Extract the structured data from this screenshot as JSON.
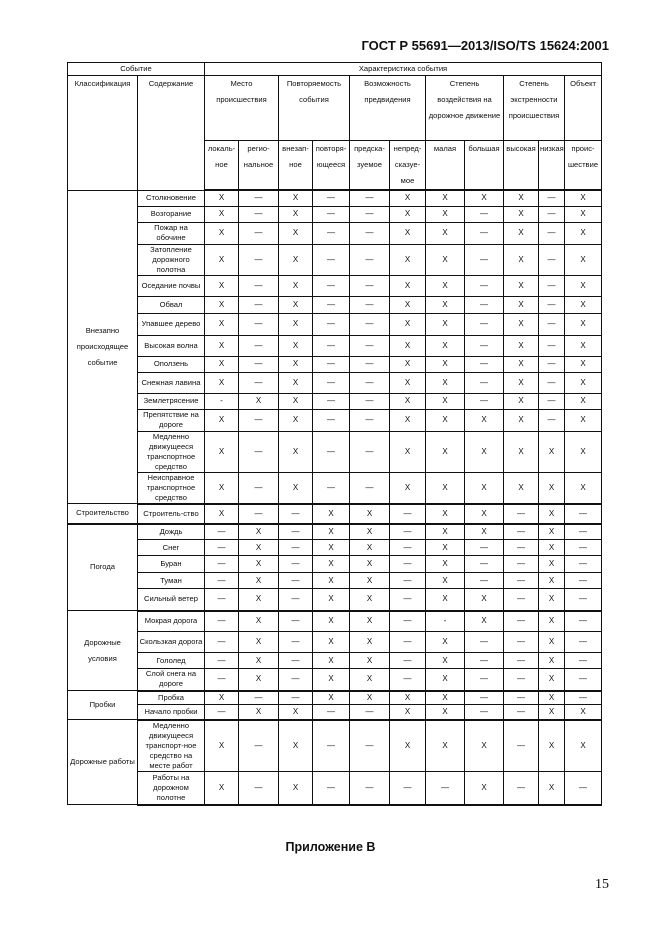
{
  "header": {
    "standard": "ГОСТ Р 55691—2013/ISO/TS 15624:2001"
  },
  "table": {
    "top_headers": {
      "event": "Событие",
      "characteristic": "Характеристика события"
    },
    "left_headers": {
      "classification": "Классификация",
      "content": "Содержание"
    },
    "groups": [
      {
        "label": "Место происшествия",
        "subs": [
          "локаль-ное",
          "регио-нальное"
        ]
      },
      {
        "label": "Повторяемость события",
        "subs": [
          "внезап-ное",
          "повторя-ющееся"
        ]
      },
      {
        "label": "Возможность предвидения",
        "subs": [
          "предска-зуемое",
          "непред-сказуе-мое"
        ]
      },
      {
        "label": "Степень воздействия на дорожное движение",
        "subs": [
          "малая",
          "большая"
        ]
      },
      {
        "label": "Степень экстренности происшествия",
        "subs": [
          "высокая",
          "низкая"
        ]
      },
      {
        "label": "Объект",
        "subs": [
          "проис-шествие"
        ]
      }
    ],
    "sections": [
      {
        "classification": "Внезапно происходящее событие",
        "rows": [
          {
            "content": "Столкновение",
            "values": [
              "X",
              "—",
              "X",
              "—",
              "—",
              "X",
              "X",
              "X",
              "X",
              "—",
              "X"
            ]
          },
          {
            "content": "Возгорание",
            "values": [
              "X",
              "—",
              "X",
              "—",
              "—",
              "X",
              "X",
              "—",
              "X",
              "—",
              "X"
            ]
          },
          {
            "content": "Пожар на обочине",
            "values": [
              "X",
              "—",
              "X",
              "—",
              "—",
              "X",
              "X",
              "—",
              "X",
              "—",
              "X"
            ]
          },
          {
            "content": "Затопление дорожного полотна",
            "values": [
              "X",
              "—",
              "X",
              "—",
              "—",
              "X",
              "X",
              "—",
              "X",
              "—",
              "X"
            ]
          },
          {
            "content": "Оседание почвы",
            "values": [
              "X",
              "—",
              "X",
              "—",
              "—",
              "X",
              "X",
              "—",
              "X",
              "—",
              "X"
            ]
          },
          {
            "content": "Обвал",
            "values": [
              "X",
              "—",
              "X",
              "—",
              "—",
              "X",
              "X",
              "—",
              "X",
              "—",
              "X"
            ]
          },
          {
            "content": "Упавшее дерево",
            "values": [
              "X",
              "—",
              "X",
              "—",
              "—",
              "X",
              "X",
              "—",
              "X",
              "—",
              "X"
            ]
          },
          {
            "content": "Высокая волна",
            "values": [
              "X",
              "—",
              "X",
              "—",
              "—",
              "X",
              "X",
              "—",
              "X",
              "—",
              "X"
            ]
          },
          {
            "content": "Оползень",
            "values": [
              "X",
              "—",
              "X",
              "—",
              "—",
              "X",
              "X",
              "—",
              "X",
              "—",
              "X"
            ]
          },
          {
            "content": "Снежная лавина",
            "values": [
              "X",
              "—",
              "X",
              "—",
              "—",
              "X",
              "X",
              "—",
              "X",
              "—",
              "X"
            ]
          },
          {
            "content": "Землетрясение",
            "values": [
              "-",
              "X",
              "X",
              "—",
              "—",
              "X",
              "X",
              "—",
              "X",
              "—",
              "X"
            ]
          },
          {
            "content": "Препятствие на дороге",
            "values": [
              "X",
              "—",
              "X",
              "—",
              "—",
              "X",
              "X",
              "X",
              "X",
              "—",
              "X"
            ]
          },
          {
            "content": "Медленно движущееся транспортное средство",
            "values": [
              "X",
              "—",
              "X",
              "—",
              "—",
              "X",
              "X",
              "X",
              "X",
              "X",
              "X"
            ]
          },
          {
            "content": "Неисправное транспортное средство",
            "values": [
              "X",
              "—",
              "X",
              "—",
              "—",
              "X",
              "X",
              "X",
              "X",
              "X",
              "X"
            ]
          }
        ]
      },
      {
        "classification": "Строительство",
        "rows": [
          {
            "content": "Строитель-ство",
            "values": [
              "X",
              "—",
              "—",
              "X",
              "X",
              "—",
              "X",
              "X",
              "—",
              "X",
              "—"
            ]
          }
        ]
      },
      {
        "classification": "Погода",
        "rows": [
          {
            "content": "Дождь",
            "values": [
              "—",
              "X",
              "—",
              "X",
              "X",
              "—",
              "X",
              "X",
              "—",
              "X",
              "—"
            ]
          },
          {
            "content": "Снег",
            "values": [
              "—",
              "X",
              "—",
              "X",
              "X",
              "—",
              "X",
              "—",
              "—",
              "X",
              "—"
            ]
          },
          {
            "content": "Буран",
            "values": [
              "—",
              "X",
              "—",
              "X",
              "X",
              "—",
              "X",
              "—",
              "—",
              "X",
              "—"
            ]
          },
          {
            "content": "Туман",
            "values": [
              "—",
              "X",
              "—",
              "X",
              "X",
              "—",
              "X",
              "—",
              "—",
              "X",
              "—"
            ]
          },
          {
            "content": "Сильный ветер",
            "values": [
              "—",
              "X",
              "—",
              "X",
              "X",
              "—",
              "X",
              "X",
              "—",
              "X",
              "—"
            ]
          }
        ]
      },
      {
        "classification": "Дорожные условия",
        "rows": [
          {
            "content": "Мокрая дорога",
            "values": [
              "—",
              "X",
              "—",
              "X",
              "X",
              "—",
              "-",
              "X",
              "—",
              "X",
              "—"
            ]
          },
          {
            "content": "Скользкая дорога",
            "values": [
              "—",
              "X",
              "—",
              "X",
              "X",
              "—",
              "X",
              "—",
              "—",
              "X",
              "—"
            ]
          },
          {
            "content": "Гололед",
            "values": [
              "—",
              "X",
              "—",
              "X",
              "X",
              "—",
              "X",
              "—",
              "—",
              "X",
              "—"
            ]
          },
          {
            "content": "Слой снега на дороге",
            "values": [
              "—",
              "X",
              "—",
              "X",
              "X",
              "—",
              "X",
              "—",
              "—",
              "X",
              "—"
            ]
          }
        ]
      },
      {
        "classification": "Пробки",
        "rows": [
          {
            "content": "Пробка",
            "values": [
              "X",
              "—",
              "—",
              "X",
              "X",
              "X",
              "X",
              "—",
              "—",
              "X",
              "—"
            ]
          },
          {
            "content": "Начало пробки",
            "values": [
              "—",
              "X",
              "X",
              "—",
              "—",
              "X",
              "X",
              "—",
              "—",
              "X",
              "X"
            ]
          }
        ]
      },
      {
        "classification": "Дорожные работы",
        "rows": [
          {
            "content": "Медленно движущееся транспорт-ное средство на месте работ",
            "values": [
              "X",
              "—",
              "X",
              "—",
              "—",
              "X",
              "X",
              "X",
              "—",
              "X",
              "X"
            ]
          },
          {
            "content": "Работы на дорожном полотне",
            "values": [
              "X",
              "—",
              "X",
              "—",
              "—",
              "—",
              "—",
              "X",
              "—",
              "X",
              "—"
            ]
          }
        ]
      }
    ]
  },
  "appendix_title": "Приложение В",
  "page_number": "15"
}
